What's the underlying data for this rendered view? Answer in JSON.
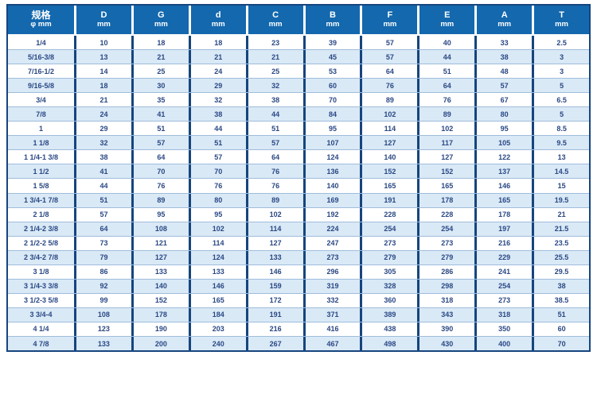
{
  "table": {
    "columns": [
      {
        "label": "规格",
        "sub": "φ mm"
      },
      {
        "label": "D",
        "sub": "mm"
      },
      {
        "label": "G",
        "sub": "mm"
      },
      {
        "label": "d",
        "sub": "mm"
      },
      {
        "label": "C",
        "sub": "mm"
      },
      {
        "label": "B",
        "sub": "mm"
      },
      {
        "label": "F",
        "sub": "mm"
      },
      {
        "label": "E",
        "sub": "mm"
      },
      {
        "label": "A",
        "sub": "mm"
      },
      {
        "label": "T",
        "sub": "mm"
      }
    ],
    "rows": [
      [
        "1/4",
        "10",
        "18",
        "18",
        "23",
        "39",
        "57",
        "40",
        "33",
        "2.5"
      ],
      [
        "5/16-3/8",
        "13",
        "21",
        "21",
        "21",
        "45",
        "57",
        "44",
        "38",
        "3"
      ],
      [
        "7/16-1/2",
        "14",
        "25",
        "24",
        "25",
        "53",
        "64",
        "51",
        "48",
        "3"
      ],
      [
        "9/16-5/8",
        "18",
        "30",
        "29",
        "32",
        "60",
        "76",
        "64",
        "57",
        "5"
      ],
      [
        "3/4",
        "21",
        "35",
        "32",
        "38",
        "70",
        "89",
        "76",
        "67",
        "6.5"
      ],
      [
        "7/8",
        "24",
        "41",
        "38",
        "44",
        "84",
        "102",
        "89",
        "80",
        "5"
      ],
      [
        "1",
        "29",
        "51",
        "44",
        "51",
        "95",
        "114",
        "102",
        "95",
        "8.5"
      ],
      [
        "1 1/8",
        "32",
        "57",
        "51",
        "57",
        "107",
        "127",
        "117",
        "105",
        "9.5"
      ],
      [
        "1 1/4-1 3/8",
        "38",
        "64",
        "57",
        "64",
        "124",
        "140",
        "127",
        "122",
        "13"
      ],
      [
        "1 1/2",
        "41",
        "70",
        "70",
        "76",
        "136",
        "152",
        "152",
        "137",
        "14.5"
      ],
      [
        "1 5/8",
        "44",
        "76",
        "76",
        "76",
        "140",
        "165",
        "165",
        "146",
        "15"
      ],
      [
        "1 3/4-1 7/8",
        "51",
        "89",
        "80",
        "89",
        "169",
        "191",
        "178",
        "165",
        "19.5"
      ],
      [
        "2 1/8",
        "57",
        "95",
        "95",
        "102",
        "192",
        "228",
        "228",
        "178",
        "21"
      ],
      [
        "2 1/4-2 3/8",
        "64",
        "108",
        "102",
        "114",
        "224",
        "254",
        "254",
        "197",
        "21.5"
      ],
      [
        "2 1/2-2 5/8",
        "73",
        "121",
        "114",
        "127",
        "247",
        "273",
        "273",
        "216",
        "23.5"
      ],
      [
        "2 3/4-2 7/8",
        "79",
        "127",
        "124",
        "133",
        "273",
        "279",
        "279",
        "229",
        "25.5"
      ],
      [
        "3 1/8",
        "86",
        "133",
        "133",
        "146",
        "296",
        "305",
        "286",
        "241",
        "29.5"
      ],
      [
        "3 1/4-3 3/8",
        "92",
        "140",
        "146",
        "159",
        "319",
        "328",
        "298",
        "254",
        "38"
      ],
      [
        "3 1/2-3 5/8",
        "99",
        "152",
        "165",
        "172",
        "332",
        "360",
        "318",
        "273",
        "38.5"
      ],
      [
        "3 3/4-4",
        "108",
        "178",
        "184",
        "191",
        "371",
        "389",
        "343",
        "318",
        "51"
      ],
      [
        "4 1/4",
        "123",
        "190",
        "203",
        "216",
        "416",
        "438",
        "390",
        "350",
        "60"
      ],
      [
        "4 7/8",
        "133",
        "200",
        "240",
        "267",
        "467",
        "498",
        "430",
        "400",
        "70"
      ]
    ],
    "colors": {
      "header_bg": "#1368ae",
      "border_dark": "#16457f",
      "row_alt_bg": "#d9e9f6",
      "row_separator": "#9fbddb",
      "text_navy": "#2a4884"
    }
  }
}
